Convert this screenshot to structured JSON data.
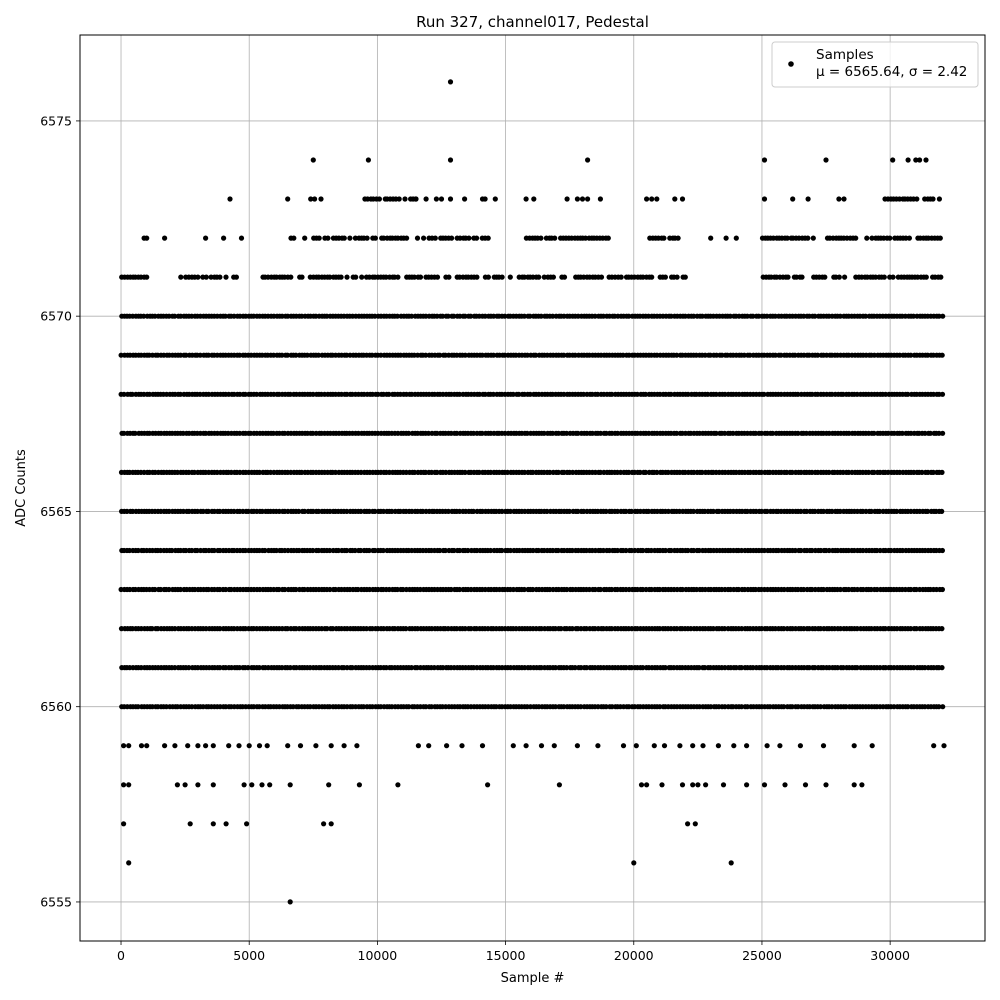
{
  "chart_data": {
    "type": "scatter",
    "title": "Run 327, channel017, Pedestal",
    "xlabel": "Sample #",
    "ylabel": "ADC Counts",
    "xlim": [
      -1600,
      33700
    ],
    "ylim": [
      6554,
      6577.2
    ],
    "grid": true,
    "legend_position": "top-right",
    "marker_color": "#000000",
    "x_ticks": [
      0,
      5000,
      10000,
      15000,
      20000,
      25000,
      30000
    ],
    "y_ticks": [
      6555,
      6560,
      6565,
      6570,
      6575
    ],
    "series": [
      {
        "name": "Samples",
        "stats_label": "μ = 6565.64, σ = 2.42",
        "mean": 6565.64,
        "sigma": 2.42,
        "n_samples": 32100,
        "x_range": [
          0,
          32100
        ],
        "level_coverage": [
          {
            "y": 6571,
            "runs": [
              [
                0,
                1000
              ],
              [
                2300,
                4600
              ],
              [
                5500,
                22000
              ],
              [
                24800,
                32000
              ]
            ]
          },
          {
            "y": 6572,
            "runs": [
              [
                6500,
                14500
              ],
              [
                15800,
                19000
              ],
              [
                20500,
                22000
              ],
              [
                25000,
                32000
              ]
            ]
          },
          {
            "y": 6573,
            "runs": [
              [
                9500,
                11500
              ],
              [
                29800,
                31900
              ]
            ]
          }
        ],
        "sparse_points": [
          [
            12850,
            6576
          ],
          [
            7500,
            6574
          ],
          [
            9650,
            6574
          ],
          [
            12850,
            6574
          ],
          [
            18200,
            6574
          ],
          [
            25100,
            6574
          ],
          [
            27500,
            6574
          ],
          [
            30100,
            6574
          ],
          [
            30700,
            6574
          ],
          [
            31000,
            6574
          ],
          [
            31150,
            6574
          ],
          [
            31400,
            6574
          ],
          [
            4250,
            6573
          ],
          [
            6500,
            6573
          ],
          [
            7400,
            6573
          ],
          [
            7550,
            6573
          ],
          [
            7800,
            6573
          ],
          [
            11500,
            6573
          ],
          [
            11900,
            6573
          ],
          [
            12300,
            6573
          ],
          [
            12500,
            6573
          ],
          [
            12850,
            6573
          ],
          [
            13400,
            6573
          ],
          [
            14100,
            6573
          ],
          [
            14200,
            6573
          ],
          [
            14600,
            6573
          ],
          [
            15800,
            6573
          ],
          [
            16100,
            6573
          ],
          [
            17400,
            6573
          ],
          [
            17800,
            6573
          ],
          [
            18000,
            6573
          ],
          [
            18200,
            6573
          ],
          [
            18700,
            6573
          ],
          [
            20500,
            6573
          ],
          [
            20700,
            6573
          ],
          [
            20900,
            6573
          ],
          [
            21600,
            6573
          ],
          [
            21900,
            6573
          ],
          [
            25100,
            6573
          ],
          [
            26200,
            6573
          ],
          [
            26800,
            6573
          ],
          [
            28000,
            6573
          ],
          [
            28200,
            6573
          ],
          [
            900,
            6572
          ],
          [
            1000,
            6572
          ],
          [
            1700,
            6572
          ],
          [
            3300,
            6572
          ],
          [
            4000,
            6572
          ],
          [
            4700,
            6572
          ],
          [
            23000,
            6572
          ],
          [
            23600,
            6572
          ],
          [
            24000,
            6572
          ],
          [
            100,
            6559
          ],
          [
            300,
            6559
          ],
          [
            800,
            6559
          ],
          [
            1000,
            6559
          ],
          [
            1700,
            6559
          ],
          [
            2100,
            6559
          ],
          [
            2600,
            6559
          ],
          [
            3000,
            6559
          ],
          [
            3300,
            6559
          ],
          [
            3600,
            6559
          ],
          [
            4200,
            6559
          ],
          [
            4600,
            6559
          ],
          [
            5000,
            6559
          ],
          [
            5400,
            6559
          ],
          [
            5700,
            6559
          ],
          [
            6500,
            6559
          ],
          [
            7000,
            6559
          ],
          [
            7600,
            6559
          ],
          [
            8200,
            6559
          ],
          [
            8700,
            6559
          ],
          [
            9200,
            6559
          ],
          [
            11600,
            6559
          ],
          [
            12000,
            6559
          ],
          [
            12700,
            6559
          ],
          [
            13300,
            6559
          ],
          [
            14100,
            6559
          ],
          [
            15300,
            6559
          ],
          [
            15800,
            6559
          ],
          [
            16400,
            6559
          ],
          [
            16900,
            6559
          ],
          [
            17800,
            6559
          ],
          [
            18600,
            6559
          ],
          [
            19600,
            6559
          ],
          [
            20100,
            6559
          ],
          [
            20800,
            6559
          ],
          [
            21200,
            6559
          ],
          [
            21800,
            6559
          ],
          [
            22300,
            6559
          ],
          [
            22700,
            6559
          ],
          [
            23300,
            6559
          ],
          [
            23900,
            6559
          ],
          [
            24400,
            6559
          ],
          [
            25200,
            6559
          ],
          [
            25700,
            6559
          ],
          [
            26500,
            6559
          ],
          [
            27400,
            6559
          ],
          [
            28600,
            6559
          ],
          [
            29300,
            6559
          ],
          [
            31700,
            6559
          ],
          [
            32100,
            6559
          ],
          [
            100,
            6558
          ],
          [
            300,
            6558
          ],
          [
            2200,
            6558
          ],
          [
            2500,
            6558
          ],
          [
            3000,
            6558
          ],
          [
            3600,
            6558
          ],
          [
            4800,
            6558
          ],
          [
            5100,
            6558
          ],
          [
            5500,
            6558
          ],
          [
            5800,
            6558
          ],
          [
            6600,
            6558
          ],
          [
            8100,
            6558
          ],
          [
            9300,
            6558
          ],
          [
            10800,
            6558
          ],
          [
            14300,
            6558
          ],
          [
            17100,
            6558
          ],
          [
            20300,
            6558
          ],
          [
            20500,
            6558
          ],
          [
            21100,
            6558
          ],
          [
            21900,
            6558
          ],
          [
            22300,
            6558
          ],
          [
            22500,
            6558
          ],
          [
            22800,
            6558
          ],
          [
            23500,
            6558
          ],
          [
            24400,
            6558
          ],
          [
            25100,
            6558
          ],
          [
            25900,
            6558
          ],
          [
            26700,
            6558
          ],
          [
            27500,
            6558
          ],
          [
            28600,
            6558
          ],
          [
            28900,
            6558
          ],
          [
            100,
            6557
          ],
          [
            2700,
            6557
          ],
          [
            3600,
            6557
          ],
          [
            4100,
            6557
          ],
          [
            4900,
            6557
          ],
          [
            7900,
            6557
          ],
          [
            8200,
            6557
          ],
          [
            22100,
            6557
          ],
          [
            22400,
            6557
          ],
          [
            300,
            6556
          ],
          [
            20000,
            6556
          ],
          [
            23800,
            6556
          ],
          [
            6600,
            6555
          ]
        ]
      }
    ]
  }
}
